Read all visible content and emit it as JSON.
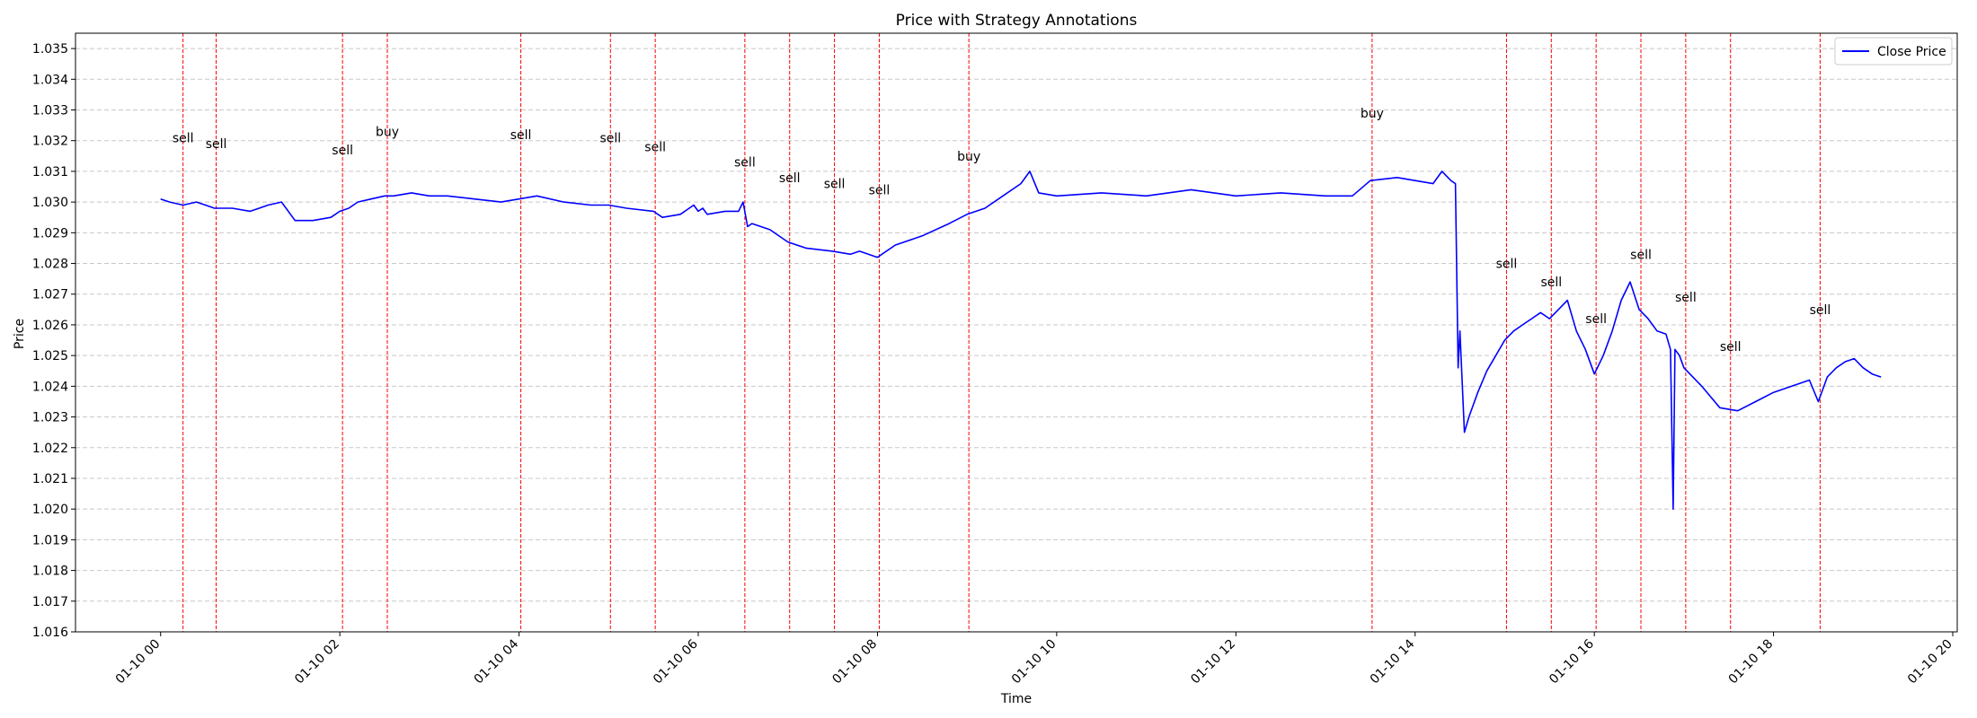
{
  "chart_data": {
    "type": "line",
    "title": "Price with Strategy Annotations",
    "xlabel": "Time",
    "ylabel": "Price",
    "ylim": [
      1.016,
      1.0355
    ],
    "xlim_hours": [
      -0.95,
      20.05
    ],
    "x_ticks": [
      {
        "hour": 0,
        "label": "01-10 00"
      },
      {
        "hour": 2,
        "label": "01-10 02"
      },
      {
        "hour": 4,
        "label": "01-10 04"
      },
      {
        "hour": 6,
        "label": "01-10 06"
      },
      {
        "hour": 8,
        "label": "01-10 08"
      },
      {
        "hour": 10,
        "label": "01-10 10"
      },
      {
        "hour": 12,
        "label": "01-10 12"
      },
      {
        "hour": 14,
        "label": "01-10 14"
      },
      {
        "hour": 16,
        "label": "01-10 16"
      },
      {
        "hour": 18,
        "label": "01-10 18"
      },
      {
        "hour": 20,
        "label": "01-10 20"
      }
    ],
    "y_ticks": [
      "1.016",
      "1.017",
      "1.018",
      "1.019",
      "1.020",
      "1.021",
      "1.022",
      "1.023",
      "1.024",
      "1.025",
      "1.026",
      "1.027",
      "1.028",
      "1.029",
      "1.030",
      "1.031",
      "1.032",
      "1.033",
      "1.034",
      "1.035"
    ],
    "grid": "horizontal dashed",
    "legend": {
      "placement": "top-right",
      "entries": [
        "Close Price"
      ]
    },
    "colors": {
      "series": "#0000ff",
      "annotation_line": "#ff0000",
      "grid": "#c8c8c8"
    },
    "series": [
      {
        "name": "Close Price",
        "x_hours": [
          0.0,
          0.1,
          0.25,
          0.4,
          0.5,
          0.6,
          0.8,
          1.0,
          1.1,
          1.2,
          1.35,
          1.5,
          1.7,
          1.9,
          2.0,
          2.1,
          2.2,
          2.35,
          2.5,
          2.6,
          2.8,
          3.0,
          3.2,
          3.5,
          3.8,
          4.0,
          4.2,
          4.5,
          4.8,
          5.0,
          5.2,
          5.5,
          5.6,
          5.8,
          5.95,
          6.0,
          6.05,
          6.1,
          6.3,
          6.45,
          6.5,
          6.55,
          6.6,
          6.8,
          7.0,
          7.2,
          7.5,
          7.7,
          7.8,
          8.0,
          8.2,
          8.5,
          8.8,
          9.0,
          9.2,
          9.4,
          9.6,
          9.7,
          9.8,
          10.0,
          10.5,
          11.0,
          11.5,
          12.0,
          12.5,
          13.0,
          13.3,
          13.5,
          13.8,
          14.0,
          14.2,
          14.3,
          14.4,
          14.45,
          14.48,
          14.5,
          14.55,
          14.6,
          14.7,
          14.8,
          14.9,
          15.0,
          15.1,
          15.2,
          15.3,
          15.4,
          15.5,
          15.6,
          15.7,
          15.8,
          15.9,
          16.0,
          16.1,
          16.2,
          16.3,
          16.4,
          16.5,
          16.6,
          16.7,
          16.8,
          16.85,
          16.88,
          16.9,
          16.95,
          17.0,
          17.2,
          17.4,
          17.6,
          17.8,
          18.0,
          18.2,
          18.4,
          18.5,
          18.6,
          18.7,
          18.8,
          18.9,
          19.0,
          19.1,
          19.2
        ],
        "values": [
          1.0301,
          1.03,
          1.0299,
          1.03,
          1.0299,
          1.0298,
          1.0298,
          1.0297,
          1.0298,
          1.0299,
          1.03,
          1.0294,
          1.0294,
          1.0295,
          1.0297,
          1.0298,
          1.03,
          1.0301,
          1.0302,
          1.0302,
          1.0303,
          1.0302,
          1.0302,
          1.0301,
          1.03,
          1.0301,
          1.0302,
          1.03,
          1.0299,
          1.0299,
          1.0298,
          1.0297,
          1.0295,
          1.0296,
          1.0299,
          1.0297,
          1.0298,
          1.0296,
          1.0297,
          1.0297,
          1.03,
          1.0292,
          1.0293,
          1.0291,
          1.0287,
          1.0285,
          1.0284,
          1.0283,
          1.0284,
          1.0282,
          1.0286,
          1.0289,
          1.0293,
          1.0296,
          1.0298,
          1.0302,
          1.0306,
          1.031,
          1.0303,
          1.0302,
          1.0303,
          1.0302,
          1.0304,
          1.0302,
          1.0303,
          1.0302,
          1.0302,
          1.0307,
          1.0308,
          1.0307,
          1.0306,
          1.031,
          1.0307,
          1.0306,
          1.0246,
          1.0258,
          1.0225,
          1.023,
          1.0238,
          1.0245,
          1.025,
          1.0255,
          1.0258,
          1.026,
          1.0262,
          1.0264,
          1.0262,
          1.0265,
          1.0268,
          1.0258,
          1.0252,
          1.0244,
          1.025,
          1.0258,
          1.0268,
          1.0274,
          1.0265,
          1.0262,
          1.0258,
          1.0257,
          1.0252,
          1.02,
          1.0252,
          1.025,
          1.0246,
          1.024,
          1.0233,
          1.0232,
          1.0235,
          1.0238,
          1.024,
          1.0242,
          1.0235,
          1.0243,
          1.0246,
          1.0248,
          1.0249,
          1.0246,
          1.0244,
          1.0243
        ]
      }
    ],
    "annotations": [
      {
        "hour": 0.25,
        "label": "sell",
        "y": 1.0321
      },
      {
        "hour": 0.62,
        "label": "sell",
        "y": 1.0319
      },
      {
        "hour": 2.03,
        "label": "sell",
        "y": 1.0317
      },
      {
        "hour": 2.53,
        "label": "buy",
        "y": 1.0323
      },
      {
        "hour": 4.02,
        "label": "sell",
        "y": 1.0322
      },
      {
        "hour": 5.02,
        "label": "sell",
        "y": 1.0321
      },
      {
        "hour": 5.52,
        "label": "sell",
        "y": 1.0318
      },
      {
        "hour": 6.52,
        "label": "sell",
        "y": 1.0313
      },
      {
        "hour": 7.02,
        "label": "sell",
        "y": 1.0308
      },
      {
        "hour": 7.52,
        "label": "sell",
        "y": 1.0306
      },
      {
        "hour": 8.02,
        "label": "sell",
        "y": 1.0304
      },
      {
        "hour": 9.02,
        "label": "buy",
        "y": 1.0315
      },
      {
        "hour": 13.52,
        "label": "buy",
        "y": 1.0329
      },
      {
        "hour": 15.02,
        "label": "sell",
        "y": 1.028
      },
      {
        "hour": 15.52,
        "label": "sell",
        "y": 1.0274
      },
      {
        "hour": 16.02,
        "label": "sell",
        "y": 1.0262
      },
      {
        "hour": 16.52,
        "label": "sell",
        "y": 1.0283
      },
      {
        "hour": 17.02,
        "label": "sell",
        "y": 1.0269
      },
      {
        "hour": 17.52,
        "label": "sell",
        "y": 1.0253
      },
      {
        "hour": 18.52,
        "label": "sell",
        "y": 1.0265
      }
    ]
  }
}
